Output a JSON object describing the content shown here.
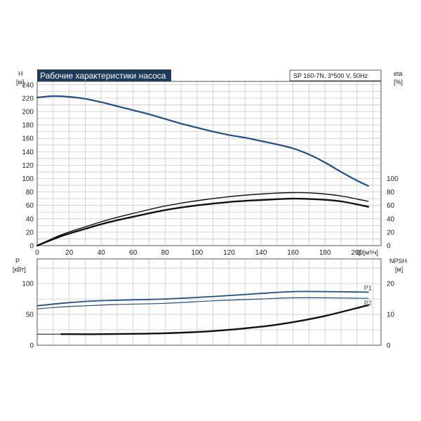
{
  "chart_data": [
    {
      "type": "line",
      "title": "Рабочие характеристики насоса",
      "info": "SP 160-7N, 3*500 V, 50Hz",
      "x_label": "Q [м³/ч]",
      "x_ticks": [
        0,
        20,
        40,
        60,
        80,
        100,
        120,
        140,
        160,
        180,
        200
      ],
      "xlim": [
        0,
        215
      ],
      "left_axis": {
        "label": "H",
        "unit": "[м]",
        "ylim": [
          0,
          245
        ],
        "ticks": [
          0,
          20,
          40,
          60,
          80,
          100,
          120,
          140,
          160,
          180,
          200,
          220,
          240
        ]
      },
      "right_axis": {
        "label": "eta",
        "unit": "[%]",
        "ylim": [
          0,
          245
        ],
        "ticks": [
          0,
          20,
          40,
          60,
          80,
          100
        ]
      },
      "grid": true,
      "series": [
        {
          "axis": "left",
          "color": "#1f4e8c",
          "width": 2.2,
          "x": [
            0,
            10,
            20,
            30,
            40,
            50,
            60,
            70,
            80,
            90,
            100,
            110,
            120,
            130,
            140,
            150,
            160,
            170,
            180,
            190,
            200,
            207
          ],
          "y": [
            221,
            223,
            222,
            219,
            214,
            208,
            202,
            196,
            189,
            182,
            176,
            170,
            165,
            161,
            156,
            151,
            145,
            136,
            124,
            110,
            97,
            89
          ]
        },
        {
          "axis": "right",
          "color": "#111111",
          "width": 1.4,
          "x": [
            0,
            15,
            30,
            45,
            60,
            80,
            100,
            120,
            140,
            160,
            175,
            190,
            207
          ],
          "y": [
            0,
            16,
            28,
            39,
            48,
            59,
            67,
            73,
            77,
            79,
            78,
            74,
            66
          ]
        },
        {
          "axis": "right",
          "color": "#111111",
          "width": 2.4,
          "x": [
            0,
            15,
            30,
            45,
            60,
            80,
            100,
            120,
            140,
            160,
            175,
            190,
            207
          ],
          "y": [
            0,
            14,
            25,
            35,
            43,
            53,
            60,
            65,
            68,
            70,
            69,
            66,
            58
          ]
        }
      ]
    },
    {
      "type": "line",
      "x_label": "Q [м³/ч]",
      "x_ticks": [
        0,
        20,
        40,
        60,
        80,
        100,
        120,
        140,
        160,
        180,
        200
      ],
      "xlim": [
        0,
        215
      ],
      "left_axis": {
        "label": "P",
        "unit": "[кВт]",
        "ylim": [
          0,
          140
        ],
        "ticks": [
          0,
          50,
          100
        ]
      },
      "right_axis": {
        "label": "NPSH",
        "unit": "[м]",
        "ylim": [
          0,
          28
        ],
        "ticks": [
          0,
          10,
          20
        ]
      },
      "grid": true,
      "series": [
        {
          "name": "P1",
          "axis": "left",
          "color": "#1f4e8c",
          "width": 1.8,
          "x": [
            0,
            15,
            30,
            50,
            80,
            110,
            140,
            160,
            180,
            207
          ],
          "y": [
            64,
            68,
            71,
            73,
            75,
            79,
            84,
            87,
            87,
            86
          ]
        },
        {
          "name": "P2",
          "axis": "left",
          "color": "#1f4e8c",
          "width": 1.2,
          "x": [
            0,
            15,
            30,
            50,
            80,
            110,
            140,
            160,
            180,
            207
          ],
          "y": [
            59,
            62,
            64,
            66,
            68,
            72,
            75,
            77,
            77,
            76
          ]
        },
        {
          "axis": "right",
          "color": "#111111",
          "width": 1.0,
          "x": [
            0,
            15
          ],
          "y": [
            3.6,
            3.6
          ]
        },
        {
          "axis": "right",
          "color": "#111111",
          "width": 2.4,
          "x": [
            15,
            40,
            80,
            110,
            140,
            160,
            180,
            207
          ],
          "y": [
            3.6,
            3.6,
            3.9,
            4.6,
            6.0,
            7.5,
            9.5,
            13.0
          ]
        }
      ]
    }
  ]
}
